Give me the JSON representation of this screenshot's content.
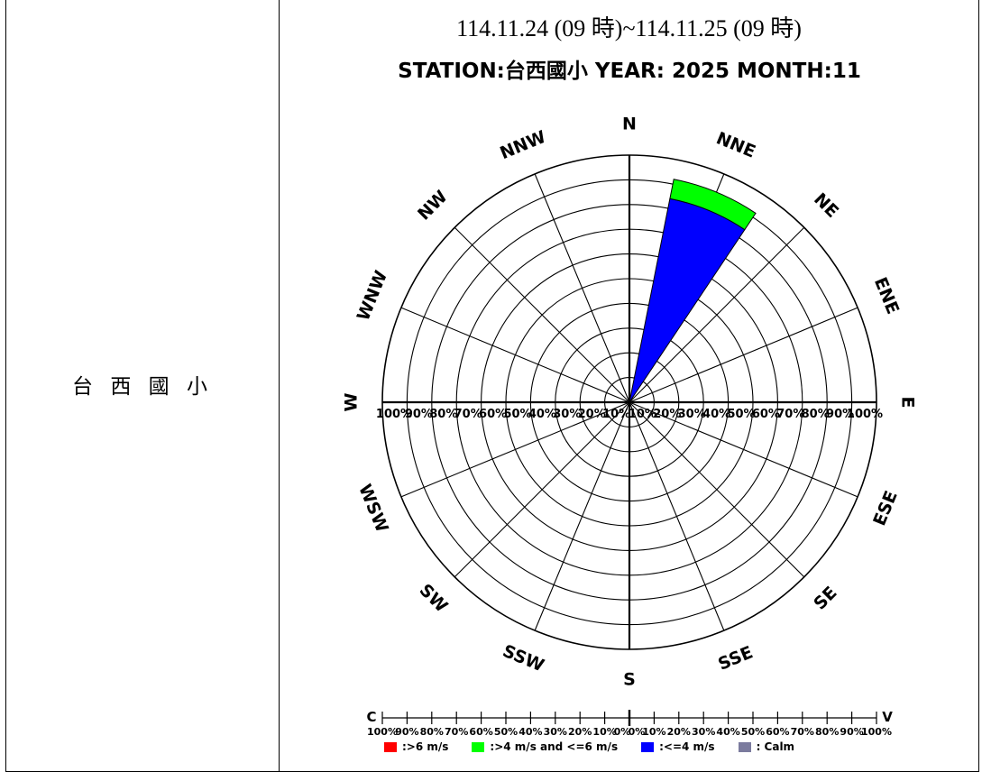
{
  "station_cell": {
    "label": "台 西 國 小"
  },
  "header": {
    "date_range": "114.11.24 (09 時)~114.11.25 (09 時)"
  },
  "chart_data": {
    "type": "windrose",
    "title": "STATION:台西國小 YEAR: 2025   MONTH:11",
    "directions": [
      "N",
      "NNE",
      "NE",
      "ENE",
      "E",
      "ESE",
      "SE",
      "SSE",
      "S",
      "SSW",
      "SW",
      "WSW",
      "W",
      "WNW",
      "NW",
      "NNW"
    ],
    "rings_percent": [
      10,
      20,
      30,
      40,
      50,
      60,
      70,
      80,
      90,
      100
    ],
    "radial_tick_labels_right": [
      "10%",
      "20%",
      "30%",
      "40%",
      "50%",
      "60%",
      "70%",
      "80%",
      "90%",
      "100%"
    ],
    "radial_tick_labels_left": [
      "100%",
      "90%",
      "80%",
      "70%",
      "60%",
      "50%",
      "40%",
      "30%",
      "20%",
      "10%"
    ],
    "series": [
      {
        "name": ":>6 m/s",
        "color": "#ff0000",
        "values": [
          0,
          0,
          0,
          0,
          0,
          0,
          0,
          0,
          0,
          0,
          0,
          0,
          0,
          0,
          0,
          0
        ]
      },
      {
        "name": ":>4 m/s and <=6 m/s",
        "color": "#00ff00",
        "values": [
          0,
          8,
          0,
          0,
          0,
          0,
          0,
          0,
          0,
          0,
          0,
          0,
          0,
          0,
          0,
          0
        ]
      },
      {
        "name": ":<=4 m/s",
        "color": "#0000ff",
        "values": [
          0,
          84,
          0,
          0,
          0,
          0,
          0,
          0,
          0,
          0,
          0,
          0,
          0,
          0,
          0,
          0
        ]
      },
      {
        "name": ": Calm",
        "color": "#7b7b9e",
        "values": []
      }
    ],
    "calm_bar": {
      "left_label": "C",
      "right_label": "V",
      "tick_labels": [
        "100%",
        "90%",
        "80%",
        "70%",
        "60%",
        "50%",
        "40%",
        "30%",
        "20%",
        "10%",
        "0%",
        "0%",
        "10%",
        "20%",
        "30%",
        "40%",
        "50%",
        "60%",
        "70%",
        "80%",
        "90%",
        "100%"
      ],
      "calm_value": 0
    }
  }
}
